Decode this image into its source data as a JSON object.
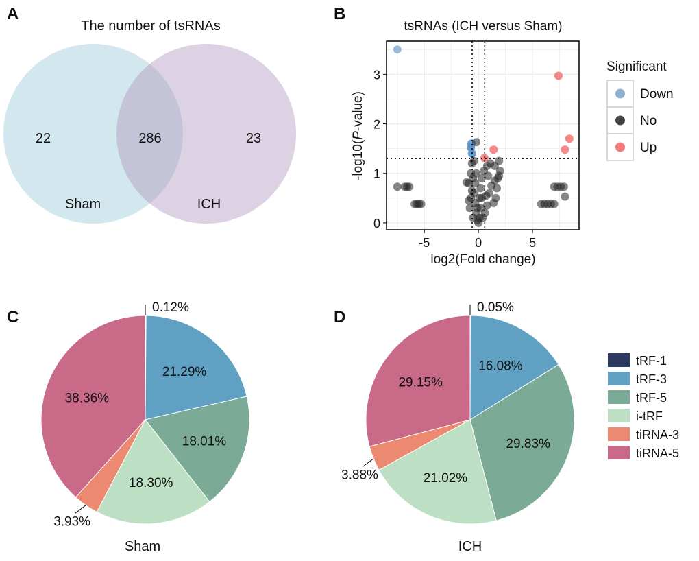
{
  "panels": {
    "a": "A",
    "b": "B",
    "c": "C",
    "d": "D"
  },
  "chart_data": [
    {
      "type": "venn",
      "title": "The number of tsRNAs",
      "sets": [
        {
          "name": "Sham",
          "only": 22,
          "color": "#d3e8ee"
        },
        {
          "name": "ICH",
          "only": 23,
          "color": "#ddd2e4"
        }
      ],
      "overlap": 286,
      "overlap_color": "#c4c4d9"
    },
    {
      "type": "scatter",
      "title": "tsRNAs (ICH versus Sham)",
      "xlabel": "log2(Fold change)",
      "ylabel_prefix": "-log10(",
      "ylabel_italic": "P",
      "ylabel_suffix": "-value)",
      "xlim": [
        -8.5,
        9.3
      ],
      "ylim": [
        -0.14,
        3.67
      ],
      "xticks": [
        -5,
        0,
        5
      ],
      "yticks": [
        0,
        1,
        2,
        3
      ],
      "thresholds": {
        "x": [
          -0.58,
          0.58
        ],
        "y": 1.3
      },
      "legend": {
        "title": "Significant",
        "position": "right",
        "entries": [
          {
            "label": "Down",
            "color": "#8fb0d2"
          },
          {
            "label": "No",
            "color": "#444444"
          },
          {
            "label": "Up",
            "color": "#f47c7c"
          }
        ]
      },
      "points": [
        [
          -7.5,
          3.5,
          "Down"
        ],
        [
          -0.65,
          1.6,
          "Down"
        ],
        [
          -0.7,
          1.52,
          "Down"
        ],
        [
          -0.6,
          1.4,
          "Down"
        ],
        [
          7.4,
          2.97,
          "Up"
        ],
        [
          8.4,
          1.7,
          "Up"
        ],
        [
          8.0,
          1.48,
          "Up"
        ],
        [
          1.4,
          1.48,
          "Up"
        ],
        [
          0.55,
          1.31,
          "Up"
        ],
        [
          -7.5,
          0.73,
          "No"
        ],
        [
          -6.8,
          0.73,
          "No"
        ],
        [
          -6.6,
          0.73,
          "No"
        ],
        [
          -6.4,
          0.73,
          "No"
        ],
        [
          -5.9,
          0.38,
          "No"
        ],
        [
          -5.7,
          0.38,
          "No"
        ],
        [
          -5.5,
          0.38,
          "No"
        ],
        [
          -5.3,
          0.38,
          "No"
        ],
        [
          5.8,
          0.38,
          "No"
        ],
        [
          6.1,
          0.38,
          "No"
        ],
        [
          6.4,
          0.38,
          "No"
        ],
        [
          6.7,
          0.38,
          "No"
        ],
        [
          7.0,
          0.38,
          "No"
        ],
        [
          7.0,
          0.73,
          "No"
        ],
        [
          7.3,
          0.73,
          "No"
        ],
        [
          7.6,
          0.73,
          "No"
        ],
        [
          7.9,
          0.73,
          "No"
        ],
        [
          8.0,
          0.53,
          "No"
        ],
        [
          -0.2,
          1.63,
          "No"
        ],
        [
          -0.4,
          1.25,
          "No"
        ],
        [
          -0.6,
          1.2,
          "No"
        ],
        [
          -0.7,
          1.0,
          "No"
        ],
        [
          -0.9,
          0.8,
          "No"
        ],
        [
          -1.1,
          0.82,
          "No"
        ],
        [
          -0.9,
          0.45,
          "No"
        ],
        [
          -0.8,
          0.3,
          "No"
        ],
        [
          -0.5,
          0.9,
          "No"
        ],
        [
          -0.4,
          0.6,
          "No"
        ],
        [
          -0.3,
          0.4,
          "No"
        ],
        [
          -0.2,
          0.2,
          "No"
        ],
        [
          -0.1,
          0.05,
          "No"
        ],
        [
          0.0,
          0.0,
          "No"
        ],
        [
          0.1,
          0.1,
          "No"
        ],
        [
          0.2,
          0.3,
          "No"
        ],
        [
          0.3,
          0.5,
          "No"
        ],
        [
          0.2,
          0.7,
          "No"
        ],
        [
          -0.3,
          0.8,
          "No"
        ],
        [
          -0.5,
          0.1,
          "No"
        ],
        [
          0.5,
          1.05,
          "No"
        ],
        [
          0.8,
          1.15,
          "No"
        ],
        [
          1.1,
          1.2,
          "No"
        ],
        [
          1.5,
          1.15,
          "No"
        ],
        [
          1.9,
          1.25,
          "No"
        ],
        [
          2.0,
          1.05,
          "No"
        ],
        [
          1.8,
          0.9,
          "No"
        ],
        [
          1.5,
          0.85,
          "No"
        ],
        [
          1.2,
          0.75,
          "No"
        ],
        [
          1.0,
          0.6,
          "No"
        ],
        [
          1.6,
          0.5,
          "No"
        ],
        [
          1.4,
          0.4,
          "No"
        ],
        [
          0.8,
          0.35,
          "No"
        ],
        [
          0.6,
          0.2,
          "No"
        ],
        [
          0.4,
          0.1,
          "No"
        ],
        [
          1.9,
          0.95,
          "No"
        ],
        [
          1.7,
          0.7,
          "No"
        ],
        [
          0.9,
          0.95,
          "No"
        ],
        [
          -0.6,
          0.65,
          "No"
        ],
        [
          -0.7,
          0.5,
          "No"
        ],
        [
          0.7,
          0.55,
          "No"
        ],
        [
          0.3,
          0.9,
          "No"
        ],
        [
          -0.2,
          1.0,
          "No"
        ],
        [
          0.1,
          0.5,
          "No"
        ],
        [
          -0.1,
          0.3,
          "No"
        ]
      ]
    },
    {
      "type": "pie",
      "label": "Sham",
      "slices": [
        {
          "name": "tRF-1",
          "value": 0.12,
          "label": "0.12%"
        },
        {
          "name": "tRF-3",
          "value": 21.29,
          "label": "21.29%"
        },
        {
          "name": "tRF-5",
          "value": 18.01,
          "label": "18.01%"
        },
        {
          "name": "i-tRF",
          "value": 18.3,
          "label": "18.30%"
        },
        {
          "name": "tiRNA-3",
          "value": 3.93,
          "label": "3.93%"
        },
        {
          "name": "tiRNA-5",
          "value": 38.36,
          "label": "38.36%"
        }
      ]
    },
    {
      "type": "pie",
      "label": "ICH",
      "slices": [
        {
          "name": "tRF-1",
          "value": 0.05,
          "label": "0.05%"
        },
        {
          "name": "tRF-3",
          "value": 16.08,
          "label": "16.08%"
        },
        {
          "name": "tRF-5",
          "value": 29.83,
          "label": "29.83%"
        },
        {
          "name": "i-tRF",
          "value": 21.02,
          "label": "21.02%"
        },
        {
          "name": "tiRNA-3",
          "value": 3.88,
          "label": "3.88%"
        },
        {
          "name": "tiRNA-5",
          "value": 29.15,
          "label": "29.15%"
        }
      ]
    }
  ],
  "pie_legend": [
    {
      "label": "tRF-1",
      "color": "#2b3a5e"
    },
    {
      "label": "tRF-3",
      "color": "#5fa0c3"
    },
    {
      "label": "tRF-5",
      "color": "#7bab97"
    },
    {
      "label": "i-tRF",
      "color": "#bde0c5"
    },
    {
      "label": "tiRNA-3",
      "color": "#eb8a70"
    },
    {
      "label": "tiRNA-5",
      "color": "#c96a88"
    }
  ]
}
